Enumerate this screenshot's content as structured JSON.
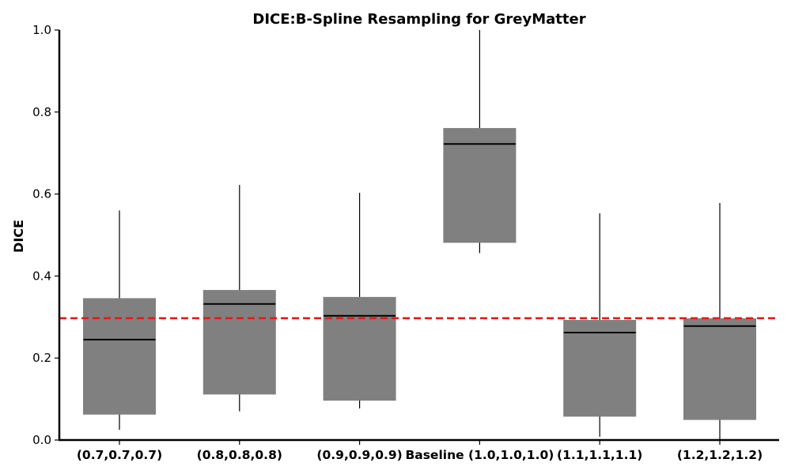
{
  "chart_data": {
    "type": "box",
    "title": "DICE:B-Spline Resampling for GreyMatter",
    "xlabel": "",
    "ylabel": "DICE",
    "ylim": [
      0.0,
      1.0
    ],
    "yticks": [
      "0.0",
      "0.2",
      "0.4",
      "0.6",
      "0.8",
      "1.0"
    ],
    "categories": [
      "(0.7,0.7,0.7)",
      "(0.8,0.8,0.8)",
      "(0.9,0.9,0.9)",
      "Baseline (1.0,1.0,1.0)",
      "(1.1,1.1,1.1)",
      "(1.2,1.2,1.2)"
    ],
    "boxes": [
      {
        "whisker_low": 0.025,
        "q1": 0.063,
        "median": 0.245,
        "q3": 0.345,
        "whisker_high": 0.56
      },
      {
        "whisker_low": 0.07,
        "q1": 0.112,
        "median": 0.332,
        "q3": 0.365,
        "whisker_high": 0.622
      },
      {
        "whisker_low": 0.077,
        "q1": 0.097,
        "median": 0.303,
        "q3": 0.348,
        "whisker_high": 0.603
      },
      {
        "whisker_low": 0.456,
        "q1": 0.482,
        "median": 0.722,
        "q3": 0.76,
        "whisker_high": 1.0
      },
      {
        "whisker_low": 0.008,
        "q1": 0.058,
        "median": 0.262,
        "q3": 0.292,
        "whisker_high": 0.553
      },
      {
        "whisker_low": 0.0,
        "q1": 0.05,
        "median": 0.278,
        "q3": 0.296,
        "whisker_high": 0.578
      }
    ],
    "reference_line": {
      "y": 0.297,
      "color": "#e31a1c",
      "style": "dashed"
    },
    "box_color": "#808080",
    "grid": false
  }
}
